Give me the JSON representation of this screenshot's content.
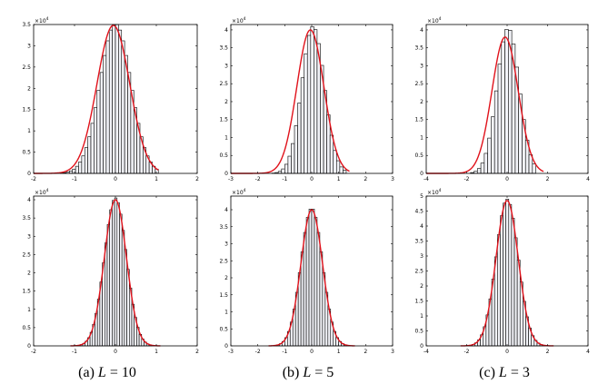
{
  "figure": {
    "captions": [
      {
        "prefix": "(a) ",
        "var": "L",
        "suffix": " = 10"
      },
      {
        "prefix": "(b) ",
        "var": "L",
        "suffix": " = 5"
      },
      {
        "prefix": "(c) ",
        "var": "L",
        "suffix": " = 3"
      }
    ],
    "colors": {
      "bar_fill": "#f2f3f8",
      "bar_stroke": "#000000",
      "curve": "#e0121b",
      "axis": "#000000"
    }
  },
  "chart_data": [
    {
      "type": "bar+line",
      "panel": "top-a",
      "xlim": [
        -2,
        2
      ],
      "ylim": [
        0,
        35000
      ],
      "y_exponent": "×10^4",
      "xticks": [
        "-2",
        "-1",
        "0",
        "1",
        "2"
      ],
      "yticks": [
        "0",
        "0.5",
        "1",
        "1.5",
        "2",
        "2.5",
        "3",
        "3.5"
      ],
      "hist": {
        "mu": 0,
        "sigma": 0.38,
        "peak": 35200,
        "bin_width": 0.075,
        "bin_start": -1.5,
        "bin_end": 1.0
      },
      "curve": {
        "mu": -0.05,
        "sigma": 0.4,
        "peak": 34800,
        "range": [
          -2,
          1.05
        ]
      }
    },
    {
      "type": "bar+line",
      "panel": "top-b",
      "xlim": [
        -3,
        3
      ],
      "ylim": [
        0,
        41500
      ],
      "y_exponent": "×10^4",
      "xticks": [
        "-3",
        "-2",
        "-1",
        "0",
        "1",
        "2",
        "3"
      ],
      "yticks": [
        "0",
        "0.5",
        "1",
        "1.5",
        "2",
        "2.5",
        "3",
        "3.5",
        "4"
      ],
      "hist": {
        "mu": 0.05,
        "sigma": 0.42,
        "peak": 41000,
        "bin_width": 0.12,
        "bin_start": -2.2,
        "bin_end": 1.2
      },
      "curve": {
        "mu": -0.05,
        "sigma": 0.5,
        "peak": 40000,
        "range": [
          -3,
          1.4
        ]
      }
    },
    {
      "type": "bar+line",
      "panel": "top-c",
      "xlim": [
        -4,
        4
      ],
      "ylim": [
        0,
        41500
      ],
      "y_exponent": "×10^4",
      "xticks": [
        "-4",
        "-2",
        "0",
        "2",
        "4"
      ],
      "yticks": [
        "0",
        "0.5",
        "1",
        "1.5",
        "2",
        "2.5",
        "3",
        "3.5",
        "4"
      ],
      "hist": {
        "mu": 0.05,
        "sigma": 0.55,
        "peak": 40500,
        "bin_width": 0.17,
        "bin_start": -3.0,
        "bin_end": 1.4
      },
      "curve": {
        "mu": -0.1,
        "sigma": 0.65,
        "peak": 38000,
        "range": [
          -4,
          1.8
        ]
      }
    },
    {
      "type": "bar+line",
      "panel": "bottom-a",
      "xlim": [
        -2,
        2
      ],
      "ylim": [
        0,
        41000
      ],
      "y_exponent": "×10^4",
      "xticks": [
        "-2",
        "-1",
        "0",
        "1",
        "2"
      ],
      "yticks": [
        "0",
        "0.5",
        "1",
        "1.5",
        "2",
        "2.5",
        "3",
        "3.5",
        "4"
      ],
      "hist": {
        "mu": 0,
        "sigma": 0.27,
        "peak": 40500,
        "bin_width": 0.06,
        "bin_start": -1.1,
        "bin_end": 1.1
      },
      "curve": {
        "mu": 0,
        "sigma": 0.27,
        "peak": 40000,
        "range": [
          -1.1,
          1.1
        ]
      }
    },
    {
      "type": "bar+line",
      "panel": "bottom-b",
      "xlim": [
        -3,
        3
      ],
      "ylim": [
        0,
        44000
      ],
      "y_exponent": "×10^4",
      "xticks": [
        "-3",
        "-2",
        "-1",
        "0",
        "1",
        "2",
        "3"
      ],
      "yticks": [
        "0",
        "0.5",
        "1",
        "1.5",
        "2",
        "2.5",
        "3",
        "3.5",
        "4"
      ],
      "hist": {
        "mu": 0,
        "sigma": 0.4,
        "peak": 40500,
        "bin_width": 0.1,
        "bin_start": -1.6,
        "bin_end": 1.6
      },
      "curve": {
        "mu": 0,
        "sigma": 0.4,
        "peak": 40000,
        "range": [
          -1.6,
          1.6
        ]
      }
    },
    {
      "type": "bar+line",
      "panel": "bottom-c",
      "xlim": [
        -4,
        4
      ],
      "ylim": [
        0,
        50000
      ],
      "y_exponent": "×10^4",
      "xticks": [
        "-4",
        "-2",
        "0",
        "2",
        "4"
      ],
      "yticks": [
        "0",
        "0.5",
        "1",
        "1.5",
        "2",
        "2.5",
        "3",
        "3.5",
        "4",
        "4.5",
        "5"
      ],
      "hist": {
        "mu": 0,
        "sigma": 0.55,
        "peak": 49000,
        "bin_width": 0.14,
        "bin_start": -2.3,
        "bin_end": 2.3
      },
      "curve": {
        "mu": 0,
        "sigma": 0.55,
        "peak": 48500,
        "range": [
          -2.3,
          2.3
        ]
      }
    }
  ]
}
